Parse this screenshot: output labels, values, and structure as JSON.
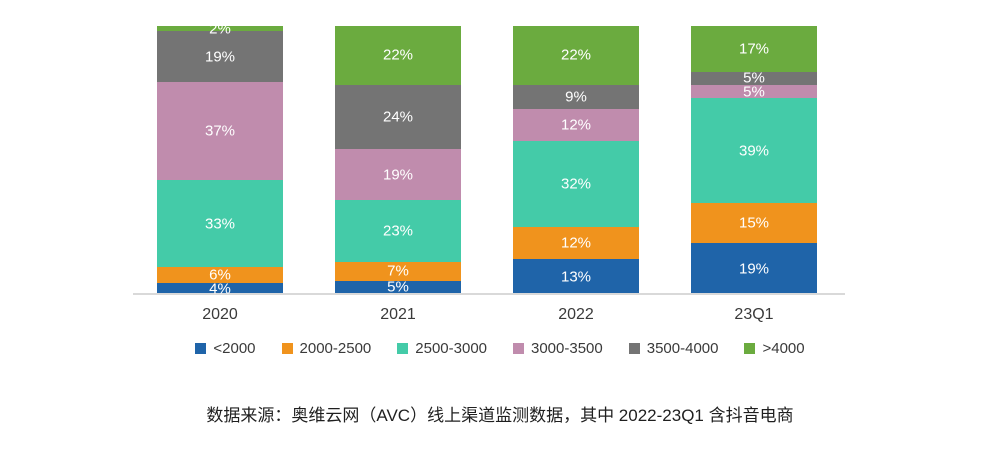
{
  "chart_data": {
    "type": "bar",
    "stacked": true,
    "percent": true,
    "title": "",
    "xlabel": "",
    "ylabel": "",
    "value_suffix": "%",
    "legend_position": "bottom",
    "grid": false,
    "axis_line_color": "#d9d9d9",
    "label_color": "#ffffff",
    "categories": [
      "2020",
      "2021",
      "2022",
      "23Q1"
    ],
    "series": [
      {
        "name": "<2000",
        "color": "#1f64a9",
        "values": [
          4,
          5,
          13,
          19
        ]
      },
      {
        "name": "2000-2500",
        "color": "#f0931d",
        "values": [
          6,
          7,
          12,
          15
        ]
      },
      {
        "name": "2500-3000",
        "color": "#44cba8",
        "values": [
          33,
          23,
          32,
          39
        ]
      },
      {
        "name": "3000-3500",
        "color": "#c08cad",
        "values": [
          37,
          19,
          12,
          5
        ]
      },
      {
        "name": "3500-4000",
        "color": "#747474",
        "values": [
          19,
          24,
          9,
          5
        ]
      },
      {
        "name": ">4000",
        "color": "#6bab3f",
        "values": [
          2,
          22,
          22,
          17
        ]
      }
    ]
  },
  "source_note": "数据来源：奥维云网（AVC）线上渠道监测数据，其中 2022-23Q1 含抖音电商"
}
